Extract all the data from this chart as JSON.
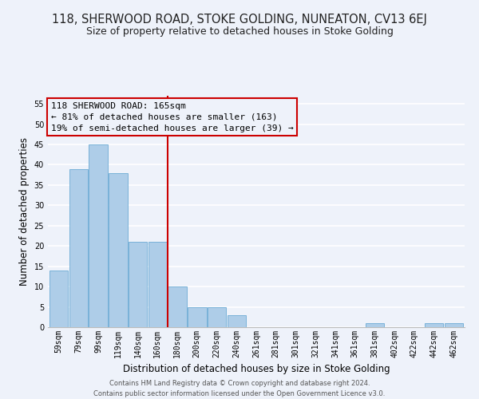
{
  "title": "118, SHERWOOD ROAD, STOKE GOLDING, NUNEATON, CV13 6EJ",
  "subtitle": "Size of property relative to detached houses in Stoke Golding",
  "xlabel": "Distribution of detached houses by size in Stoke Golding",
  "ylabel": "Number of detached properties",
  "bar_labels": [
    "59sqm",
    "79sqm",
    "99sqm",
    "119sqm",
    "140sqm",
    "160sqm",
    "180sqm",
    "200sqm",
    "220sqm",
    "240sqm",
    "261sqm",
    "281sqm",
    "301sqm",
    "321sqm",
    "341sqm",
    "361sqm",
    "381sqm",
    "402sqm",
    "422sqm",
    "442sqm",
    "462sqm"
  ],
  "bar_values": [
    14,
    39,
    45,
    38,
    21,
    21,
    10,
    5,
    5,
    3,
    0,
    0,
    0,
    0,
    0,
    0,
    1,
    0,
    0,
    1,
    1
  ],
  "bar_color": "#aecde8",
  "bar_edge_color": "#6aaad4",
  "vline_x": 5.5,
  "vline_color": "#cc0000",
  "annotation_lines": [
    "118 SHERWOOD ROAD: 165sqm",
    "← 81% of detached houses are smaller (163)",
    "19% of semi-detached houses are larger (39) →"
  ],
  "annotation_box_color": "#cc0000",
  "footer_lines": [
    "Contains HM Land Registry data © Crown copyright and database right 2024.",
    "Contains public sector information licensed under the Open Government Licence v3.0."
  ],
  "ylim": [
    0,
    57
  ],
  "yticks": [
    0,
    5,
    10,
    15,
    20,
    25,
    30,
    35,
    40,
    45,
    50,
    55
  ],
  "bg_color": "#eef2fa",
  "grid_color": "#ffffff",
  "title_fontsize": 10.5,
  "subtitle_fontsize": 9,
  "axis_label_fontsize": 8.5,
  "tick_fontsize": 7,
  "annotation_fontsize": 8,
  "footer_fontsize": 6
}
